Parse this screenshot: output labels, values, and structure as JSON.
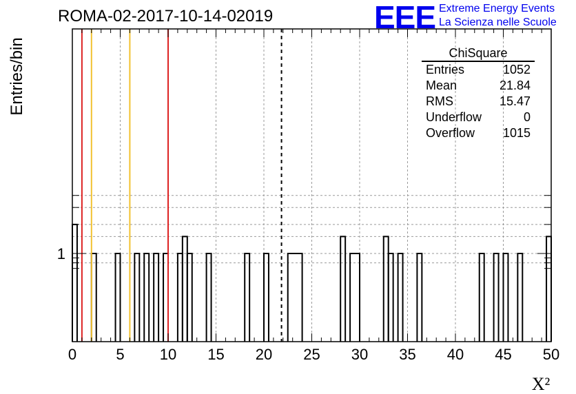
{
  "title": "ROMA-02-2017-10-14-02019",
  "logo": {
    "mark": "EEE",
    "line1": "Extreme Energy Events",
    "line2": "La Scienza nelle Scuole",
    "color": "#0000ee"
  },
  "stats": {
    "name": "ChiSquare",
    "rows": [
      {
        "label": "Entries",
        "value": "1052"
      },
      {
        "label": "Mean",
        "value": "21.84"
      },
      {
        "label": "RMS",
        "value": "15.47"
      },
      {
        "label": "Underflow",
        "value": "0"
      },
      {
        "label": "Overflow",
        "value": "1015"
      }
    ]
  },
  "chart_data": {
    "type": "bar",
    "histogram": true,
    "title": "ROMA-02-2017-10-14-02019",
    "xlabel": "X²",
    "ylabel": "Entries/bin",
    "xlim": [
      0,
      50
    ],
    "log_y": true,
    "y_tick_labels": [
      "1"
    ],
    "grid": true,
    "bin_width": 0.5,
    "bars": [
      {
        "x0": 0,
        "x1": 0.5,
        "y": 2
      },
      {
        "x0": 2,
        "x1": 2.5,
        "y": 1
      },
      {
        "x0": 4.5,
        "x1": 5,
        "y": 1
      },
      {
        "x0": 6.5,
        "x1": 7,
        "y": 1
      },
      {
        "x0": 7.5,
        "x1": 8,
        "y": 1
      },
      {
        "x0": 8.5,
        "x1": 9,
        "y": 1
      },
      {
        "x0": 9.5,
        "x1": 10,
        "y": 1
      },
      {
        "x0": 11,
        "x1": 11.5,
        "y": 1
      },
      {
        "x0": 11.5,
        "x1": 12,
        "y": 1.5
      },
      {
        "x0": 12,
        "x1": 12.5,
        "y": 1
      },
      {
        "x0": 14,
        "x1": 14.5,
        "y": 1
      },
      {
        "x0": 18,
        "x1": 18.5,
        "y": 1
      },
      {
        "x0": 20,
        "x1": 20.5,
        "y": 1
      },
      {
        "x0": 22.5,
        "x1": 24,
        "y": 1
      },
      {
        "x0": 28,
        "x1": 28.5,
        "y": 1.5
      },
      {
        "x0": 29,
        "x1": 30,
        "y": 1
      },
      {
        "x0": 32.5,
        "x1": 33,
        "y": 1.5
      },
      {
        "x0": 33,
        "x1": 33.5,
        "y": 1
      },
      {
        "x0": 34,
        "x1": 34.5,
        "y": 1
      },
      {
        "x0": 36,
        "x1": 36.5,
        "y": 1
      },
      {
        "x0": 42.5,
        "x1": 43,
        "y": 1
      },
      {
        "x0": 44,
        "x1": 44.5,
        "y": 1
      },
      {
        "x0": 45,
        "x1": 45.5,
        "y": 1
      },
      {
        "x0": 46.5,
        "x1": 47,
        "y": 1
      },
      {
        "x0": 49.5,
        "x1": 50,
        "y": 1.5
      }
    ],
    "vertical_lines": [
      {
        "x": 1,
        "color": "#dd2222",
        "style": "solid"
      },
      {
        "x": 2,
        "color": "#f2c230",
        "style": "solid"
      },
      {
        "x": 6,
        "color": "#f2c230",
        "style": "solid"
      },
      {
        "x": 10,
        "color": "#dd2222",
        "style": "solid"
      },
      {
        "x": 21.84,
        "color": "#000000",
        "style": "dashed"
      }
    ]
  }
}
